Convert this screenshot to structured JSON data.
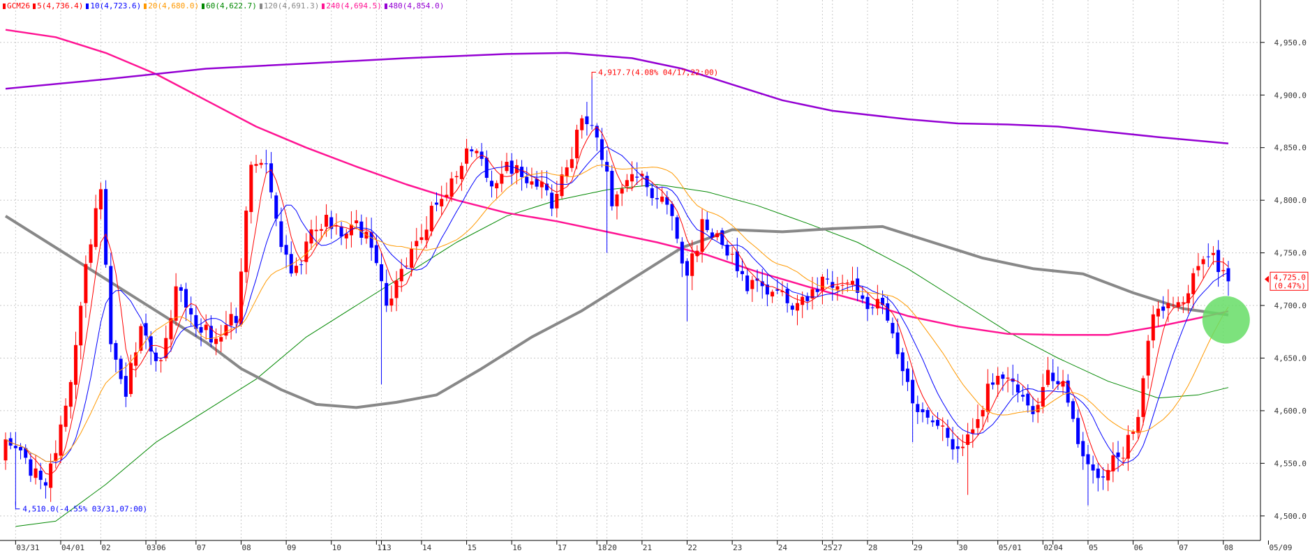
{
  "legend": [
    {
      "label": "GCM26",
      "color": "#ff0000"
    },
    {
      "label": "5(4,736.4)",
      "color": "#ff0000"
    },
    {
      "label": "10(4,723.6)",
      "color": "#0000ff"
    },
    {
      "label": "20(4,680.0)",
      "color": "#ff9900"
    },
    {
      "label": "60(4,622.7)",
      "color": "#008800"
    },
    {
      "label": "120(4,691.3)",
      "color": "#888888"
    },
    {
      "label": "240(4,694.5)",
      "color": "#ff1493"
    },
    {
      "label": "480(4,854.0)",
      "color": "#9400d3"
    }
  ],
  "price_box": {
    "value": "4,725.0",
    "pct": "(0.47%)",
    "color": "#ff0000"
  },
  "chart_data": {
    "type": "candlestick",
    "ylim": [
      4480,
      4985
    ],
    "yticks": [
      4500,
      4550,
      4600,
      4650,
      4700,
      4750,
      4800,
      4850,
      4900,
      4950
    ],
    "ytick_labels": [
      "4,500.0",
      "4,550.0",
      "4,600.0",
      "4,650.0",
      "4,700.0",
      "4,750.0",
      "4,800.0",
      "4,850.0",
      "4,900.0",
      "4,950.0"
    ],
    "n_bars": 245,
    "xticks": [
      {
        "i": 2,
        "label": "03/31"
      },
      {
        "i": 11,
        "label": "04/01"
      },
      {
        "i": 19,
        "label": "02"
      },
      {
        "i": 28,
        "label": "03"
      },
      {
        "i": 30,
        "label": "06"
      },
      {
        "i": 38,
        "label": "07"
      },
      {
        "i": 47,
        "label": "08"
      },
      {
        "i": 56,
        "label": "09"
      },
      {
        "i": 65,
        "label": "10"
      },
      {
        "i": 74,
        "label": "11"
      },
      {
        "i": 75,
        "label": "13"
      },
      {
        "i": 83,
        "label": "14"
      },
      {
        "i": 92,
        "label": "15"
      },
      {
        "i": 101,
        "label": "16"
      },
      {
        "i": 110,
        "label": "17"
      },
      {
        "i": 118,
        "label": "18"
      },
      {
        "i": 120,
        "label": "20"
      },
      {
        "i": 127,
        "label": "21"
      },
      {
        "i": 136,
        "label": "22"
      },
      {
        "i": 145,
        "label": "23"
      },
      {
        "i": 154,
        "label": "24"
      },
      {
        "i": 163,
        "label": "25"
      },
      {
        "i": 165,
        "label": "27"
      },
      {
        "i": 172,
        "label": "28"
      },
      {
        "i": 181,
        "label": "29"
      },
      {
        "i": 190,
        "label": "30"
      },
      {
        "i": 198,
        "label": "05/01"
      },
      {
        "i": 207,
        "label": "02"
      },
      {
        "i": 209,
        "label": "04"
      },
      {
        "i": 216,
        "label": "05"
      },
      {
        "i": 225,
        "label": "06"
      },
      {
        "i": 234,
        "label": "07"
      },
      {
        "i": 243,
        "label": "08"
      },
      {
        "i": 252,
        "label": "05/09"
      }
    ],
    "anchors": [
      [
        0,
        4575
      ],
      [
        4,
        4550
      ],
      [
        8,
        4530
      ],
      [
        12,
        4600
      ],
      [
        16,
        4740
      ],
      [
        19,
        4810
      ],
      [
        21,
        4660
      ],
      [
        24,
        4620
      ],
      [
        27,
        4680
      ],
      [
        31,
        4640
      ],
      [
        34,
        4715
      ],
      [
        38,
        4680
      ],
      [
        42,
        4670
      ],
      [
        46,
        4690
      ],
      [
        49,
        4840
      ],
      [
        52,
        4830
      ],
      [
        55,
        4750
      ],
      [
        58,
        4730
      ],
      [
        61,
        4765
      ],
      [
        64,
        4780
      ],
      [
        67,
        4770
      ],
      [
        70,
        4775
      ],
      [
        73,
        4760
      ],
      [
        76,
        4700
      ],
      [
        79,
        4730
      ],
      [
        82,
        4760
      ],
      [
        85,
        4790
      ],
      [
        88,
        4805
      ],
      [
        91,
        4840
      ],
      [
        94,
        4845
      ],
      [
        97,
        4815
      ],
      [
        100,
        4835
      ],
      [
        103,
        4825
      ],
      [
        106,
        4815
      ],
      [
        109,
        4800
      ],
      [
        112,
        4825
      ],
      [
        115,
        4880
      ],
      [
        118,
        4860
      ],
      [
        121,
        4800
      ],
      [
        124,
        4815
      ],
      [
        127,
        4830
      ],
      [
        130,
        4800
      ],
      [
        133,
        4790
      ],
      [
        136,
        4725
      ],
      [
        139,
        4775
      ],
      [
        142,
        4770
      ],
      [
        145,
        4745
      ],
      [
        148,
        4720
      ],
      [
        151,
        4720
      ],
      [
        154,
        4715
      ],
      [
        157,
        4695
      ],
      [
        160,
        4705
      ],
      [
        163,
        4720
      ],
      [
        166,
        4715
      ],
      [
        169,
        4725
      ],
      [
        172,
        4700
      ],
      [
        175,
        4700
      ],
      [
        178,
        4660
      ],
      [
        181,
        4600
      ],
      [
        184,
        4595
      ],
      [
        187,
        4580
      ],
      [
        190,
        4560
      ],
      [
        193,
        4580
      ],
      [
        196,
        4620
      ],
      [
        199,
        4630
      ],
      [
        202,
        4625
      ],
      [
        205,
        4590
      ],
      [
        208,
        4640
      ],
      [
        211,
        4620
      ],
      [
        214,
        4570
      ],
      [
        217,
        4540
      ],
      [
        220,
        4545
      ],
      [
        223,
        4560
      ],
      [
        226,
        4600
      ],
      [
        229,
        4690
      ],
      [
        232,
        4705
      ],
      [
        235,
        4705
      ],
      [
        238,
        4740
      ],
      [
        241,
        4745
      ],
      [
        244,
        4725
      ]
    ],
    "high_annotation": {
      "i": 117,
      "value": 4917.7,
      "label": "4,917.7(4.08% 04/17,22:00)",
      "color": "#ff0000"
    },
    "low_annotation": {
      "i": 2,
      "value": 4510.0,
      "label": "4,510.0(-4.55% 03/31,07:00)",
      "color": "#0000ff"
    },
    "series": [
      {
        "name": "5",
        "color": "#ff0000",
        "width": 1,
        "period": 5
      },
      {
        "name": "10",
        "color": "#0000ff",
        "width": 1,
        "period": 10
      },
      {
        "name": "20",
        "color": "#ff9900",
        "width": 1,
        "period": 20
      },
      {
        "name": "60",
        "color": "#008800",
        "width": 1,
        "points": [
          [
            2,
            4490
          ],
          [
            10,
            4495
          ],
          [
            20,
            4530
          ],
          [
            30,
            4570
          ],
          [
            40,
            4600
          ],
          [
            50,
            4630
          ],
          [
            60,
            4670
          ],
          [
            70,
            4700
          ],
          [
            80,
            4730
          ],
          [
            90,
            4760
          ],
          [
            100,
            4785
          ],
          [
            110,
            4800
          ],
          [
            120,
            4810
          ],
          [
            130,
            4815
          ],
          [
            140,
            4808
          ],
          [
            150,
            4795
          ],
          [
            160,
            4778
          ],
          [
            170,
            4760
          ],
          [
            180,
            4735
          ],
          [
            190,
            4705
          ],
          [
            200,
            4675
          ],
          [
            210,
            4650
          ],
          [
            220,
            4628
          ],
          [
            230,
            4612
          ],
          [
            238,
            4615
          ],
          [
            244,
            4622
          ]
        ]
      },
      {
        "name": "120",
        "color": "#888888",
        "width": 4,
        "points": [
          [
            0,
            4785
          ],
          [
            10,
            4755
          ],
          [
            20,
            4725
          ],
          [
            30,
            4695
          ],
          [
            40,
            4665
          ],
          [
            47,
            4640
          ],
          [
            55,
            4620
          ],
          [
            62,
            4606
          ],
          [
            70,
            4603
          ],
          [
            78,
            4608
          ],
          [
            86,
            4615
          ],
          [
            95,
            4640
          ],
          [
            105,
            4670
          ],
          [
            115,
            4695
          ],
          [
            125,
            4725
          ],
          [
            135,
            4755
          ],
          [
            145,
            4772
          ],
          [
            155,
            4770
          ],
          [
            165,
            4773
          ],
          [
            175,
            4775
          ],
          [
            185,
            4760
          ],
          [
            195,
            4745
          ],
          [
            205,
            4735
          ],
          [
            215,
            4730
          ],
          [
            225,
            4712
          ],
          [
            235,
            4697
          ],
          [
            244,
            4691
          ]
        ]
      },
      {
        "name": "240",
        "color": "#ff1493",
        "width": 2.5,
        "points": [
          [
            0,
            4962
          ],
          [
            10,
            4955
          ],
          [
            20,
            4940
          ],
          [
            30,
            4920
          ],
          [
            40,
            4895
          ],
          [
            50,
            4870
          ],
          [
            60,
            4850
          ],
          [
            70,
            4832
          ],
          [
            80,
            4815
          ],
          [
            90,
            4800
          ],
          [
            100,
            4788
          ],
          [
            110,
            4780
          ],
          [
            120,
            4770
          ],
          [
            130,
            4760
          ],
          [
            140,
            4748
          ],
          [
            150,
            4732
          ],
          [
            160,
            4718
          ],
          [
            170,
            4705
          ],
          [
            180,
            4690
          ],
          [
            190,
            4680
          ],
          [
            200,
            4673
          ],
          [
            210,
            4672
          ],
          [
            220,
            4672
          ],
          [
            230,
            4680
          ],
          [
            238,
            4688
          ],
          [
            244,
            4694.5
          ]
        ]
      },
      {
        "name": "480",
        "color": "#9400d3",
        "width": 2.5,
        "points": [
          [
            0,
            4906
          ],
          [
            20,
            4915
          ],
          [
            40,
            4925
          ],
          [
            60,
            4930
          ],
          [
            80,
            4935
          ],
          [
            100,
            4939
          ],
          [
            112,
            4940
          ],
          [
            125,
            4935
          ],
          [
            135,
            4925
          ],
          [
            145,
            4910
          ],
          [
            155,
            4895
          ],
          [
            165,
            4885
          ],
          [
            180,
            4877
          ],
          [
            190,
            4873
          ],
          [
            200,
            4872
          ],
          [
            210,
            4870
          ],
          [
            220,
            4865
          ],
          [
            230,
            4860
          ],
          [
            244,
            4854
          ]
        ]
      }
    ],
    "highlight_circle": {
      "i": 243,
      "value": 4685,
      "color": "#66dd66"
    }
  }
}
